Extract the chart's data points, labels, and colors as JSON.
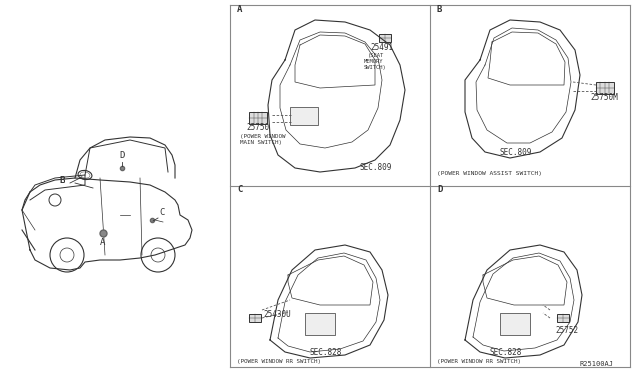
{
  "bg_color": "#ffffff",
  "line_color": "#333333",
  "text_color": "#333333",
  "border_color": "#888888",
  "fig_width": 6.4,
  "fig_height": 3.72,
  "diagram_ref": "R25100AJ",
  "panels": {
    "A": {
      "label": "A",
      "part_num": "25750",
      "part_name": "(POWER WINDOW\nMAIN SWITCH)",
      "sec": "SEC.809",
      "extra_part": "25491\n(SEAT\nMEMORY\nSWITCH)"
    },
    "B": {
      "label": "B",
      "part_num": "25750M",
      "part_name": "(POWER WINDOW ASSIST SWITCH)",
      "sec": "SEC.809"
    },
    "C": {
      "label": "C",
      "part_num": "25430U",
      "part_name": "(POWER WINDOW RR SWITCH)",
      "sec": "SEC.828"
    },
    "D": {
      "label": "D",
      "part_num": "25752",
      "part_name": "(POWER WINDOW RR SWITCH)",
      "sec": "SEC.828"
    }
  },
  "car_labels": [
    "A",
    "B",
    "C",
    "D"
  ],
  "font_size_small": 5.0,
  "font_size_label": 6.5,
  "font_size_partnum": 5.5,
  "font_size_ref": 5.5
}
